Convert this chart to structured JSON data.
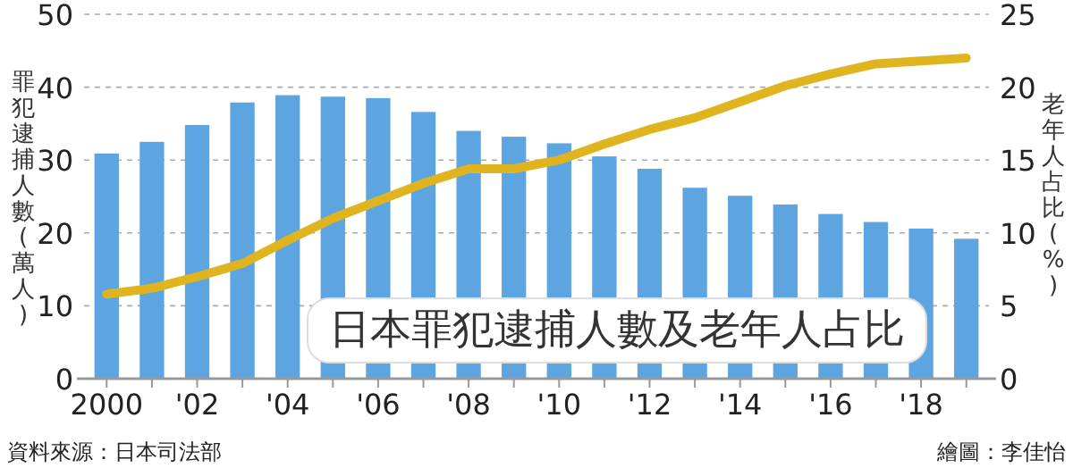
{
  "chart_data": {
    "type": "bar",
    "title": "日本罪犯逮捕人數及老年人占比",
    "ylabel": "罪犯逮捕人數(萬人)",
    "y2label": "老年人占比(%)",
    "annotations": [
      "資料來源：日本司法部",
      "繪圖：李佳怡"
    ],
    "categories": [
      "2000",
      null,
      "'02",
      null,
      "'04",
      null,
      "'06",
      null,
      "'08",
      null,
      "'10",
      null,
      "'12",
      null,
      "'14",
      null,
      "'16",
      null,
      "'18",
      null
    ],
    "series": [
      {
        "color": "#5da5e0",
        "values": [
          30.9,
          32.5,
          34.8,
          37.9,
          38.9,
          38.7,
          38.5,
          36.6,
          34.0,
          33.2,
          32.3,
          30.5,
          28.8,
          26.2,
          25.1,
          23.9,
          22.6,
          21.5,
          20.6,
          19.2
        ]
      },
      {
        "type": "line",
        "axis": "y2",
        "color": "#e0b41e",
        "values": [
          5.8,
          6.2,
          7.0,
          7.9,
          9.5,
          11.0,
          12.2,
          13.4,
          14.4,
          14.4,
          15.0,
          16.1,
          17.1,
          17.9,
          19.0,
          20.1,
          20.9,
          21.6,
          21.8,
          22.0
        ]
      }
    ],
    "ylim": [
      0,
      50
    ],
    "yticks": [
      0,
      10,
      20,
      30,
      40,
      50
    ],
    "y2lim": [
      0,
      25
    ],
    "y2ticks": [
      0,
      5,
      10,
      15,
      20,
      25
    ],
    "grid": "y"
  }
}
